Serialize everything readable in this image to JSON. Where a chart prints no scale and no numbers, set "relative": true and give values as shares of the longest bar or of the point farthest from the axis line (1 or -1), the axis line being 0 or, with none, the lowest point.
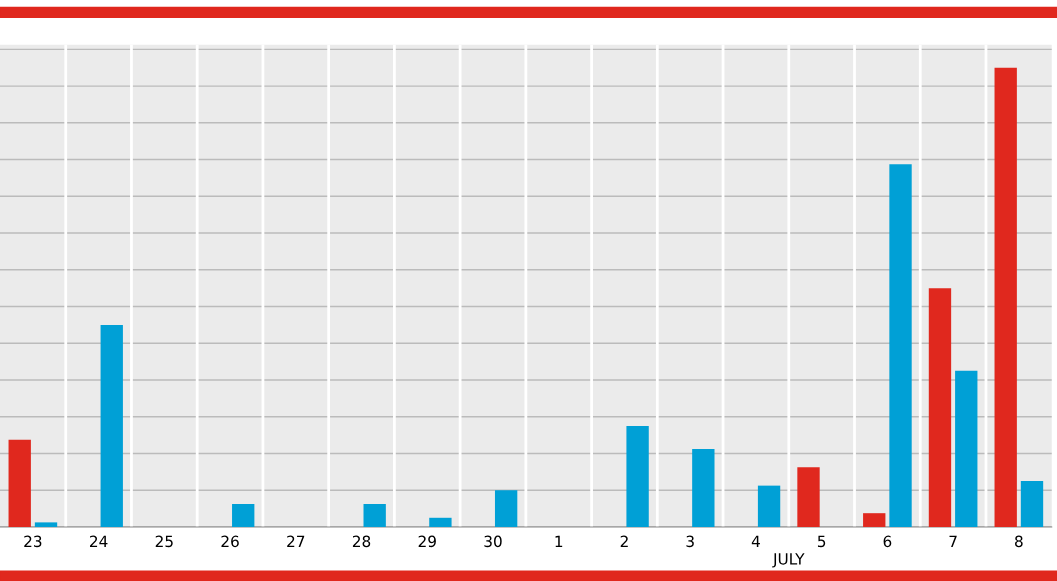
{
  "chart_data": {
    "type": "bar",
    "relative": true,
    "xlabel": "JULY",
    "grid": "y",
    "categories": [
      "23",
      "24",
      "25",
      "26",
      "27",
      "28",
      "29",
      "30",
      "1",
      "2",
      "3",
      "4",
      "5",
      "6",
      "7",
      "8"
    ],
    "series": [
      {
        "color": "#e0281e",
        "values": [
          0.19,
          0,
          0,
          0,
          0,
          0,
          0,
          0,
          0,
          0,
          0,
          0,
          0.13,
          0.03,
          0.52,
          1
        ]
      },
      {
        "color": "#00a0d6",
        "values": [
          0.01,
          0.44,
          0,
          0.05,
          0,
          0.05,
          0.02,
          0.08,
          0,
          0.22,
          0.17,
          0.09,
          0,
          0.79,
          0.34,
          0.1
        ]
      }
    ]
  }
}
